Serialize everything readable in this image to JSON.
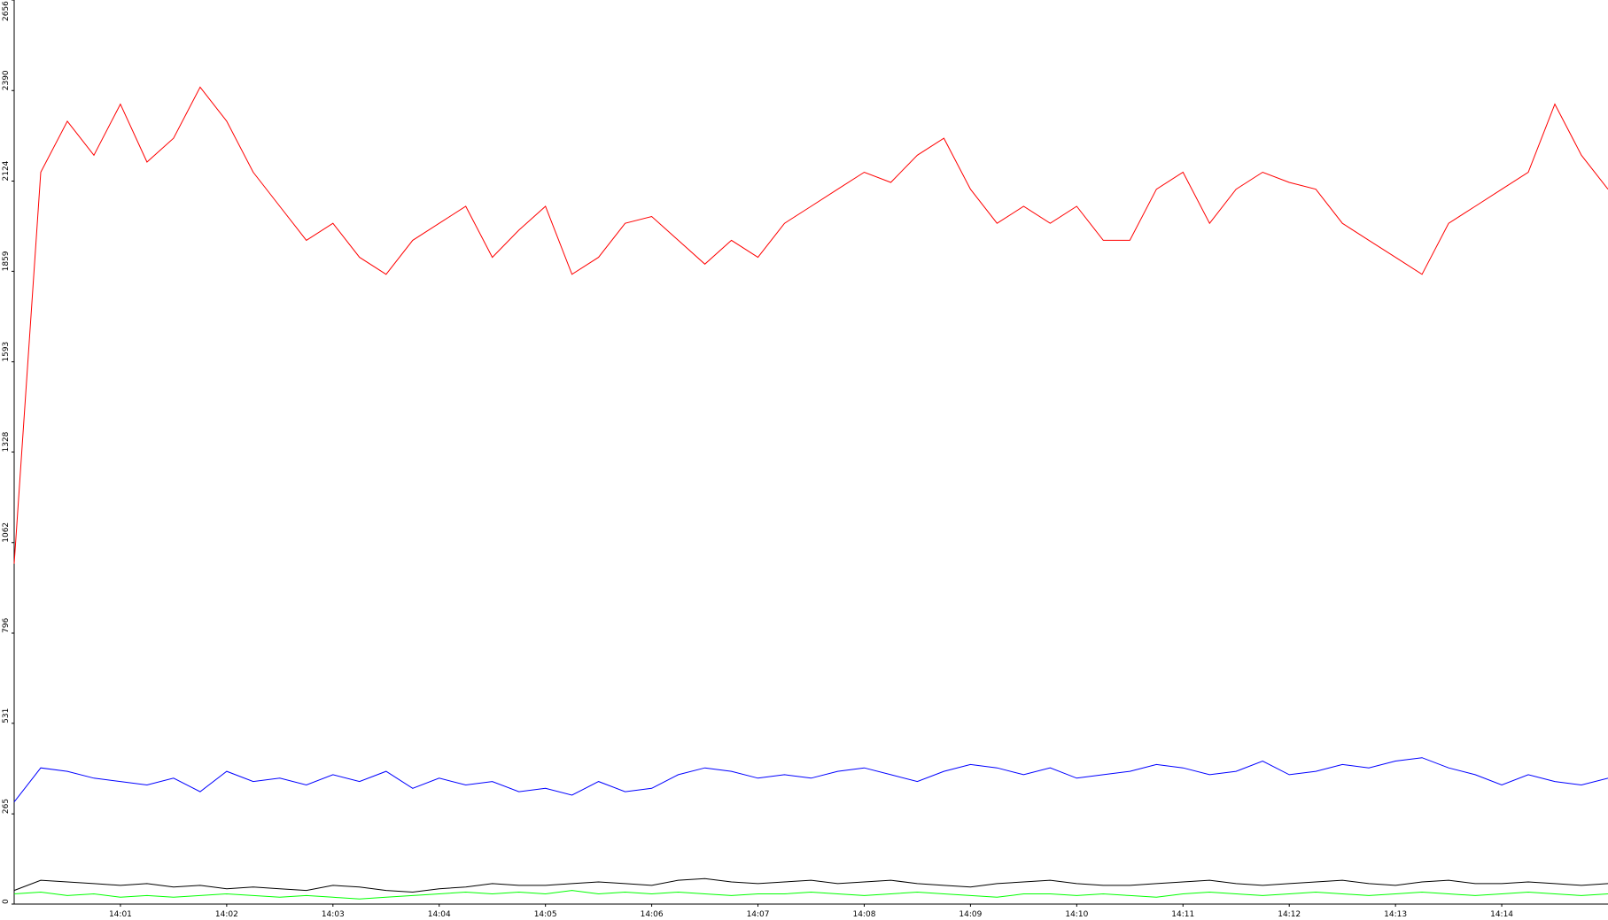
{
  "chart_data": {
    "type": "line",
    "categories": [
      null,
      null,
      null,
      null,
      "14:01",
      null,
      null,
      null,
      "14:02",
      null,
      null,
      null,
      "14:03",
      null,
      null,
      null,
      "14:04",
      null,
      null,
      null,
      "14:05",
      null,
      null,
      null,
      "14:06",
      null,
      null,
      null,
      "14:07",
      null,
      null,
      null,
      "14:08",
      null,
      null,
      null,
      "14:09",
      null,
      null,
      null,
      "14:10",
      null,
      null,
      null,
      "14:11",
      null,
      null,
      null,
      "14:12",
      null,
      null,
      null,
      "14:13",
      null,
      null,
      null,
      "14:14",
      null,
      null,
      null,
      null
    ],
    "series": [
      {
        "color": "#ff0000",
        "values": [
          1000,
          2150,
          2300,
          2200,
          2350,
          2180,
          2250,
          2400,
          2300,
          2150,
          2050,
          1950,
          2000,
          1900,
          1850,
          1950,
          2000,
          2050,
          1900,
          1980,
          2050,
          1850,
          1900,
          2000,
          2020,
          1950,
          1880,
          1950,
          1900,
          2000,
          2050,
          2100,
          2150,
          2120,
          2200,
          2250,
          2100,
          2000,
          2050,
          2000,
          2050,
          1950,
          1950,
          2100,
          2150,
          2000,
          2100,
          2150,
          2120,
          2100,
          2000,
          1950,
          1900,
          1850,
          2000,
          2050,
          2100,
          2150,
          2350,
          2200,
          2100
        ]
      },
      {
        "color": "#0000ff",
        "values": [
          300,
          400,
          390,
          370,
          360,
          350,
          370,
          330,
          390,
          360,
          370,
          350,
          380,
          360,
          390,
          340,
          370,
          350,
          360,
          330,
          340,
          320,
          360,
          330,
          340,
          380,
          400,
          390,
          370,
          380,
          370,
          390,
          400,
          380,
          360,
          390,
          410,
          400,
          380,
          400,
          370,
          380,
          390,
          410,
          400,
          380,
          390,
          420,
          380,
          390,
          410,
          400,
          420,
          430,
          400,
          380,
          350,
          380,
          360,
          350,
          370
        ]
      },
      {
        "color": "#000000",
        "values": [
          40,
          70,
          65,
          60,
          55,
          60,
          50,
          55,
          45,
          50,
          45,
          40,
          55,
          50,
          40,
          35,
          45,
          50,
          60,
          55,
          55,
          60,
          65,
          60,
          55,
          70,
          75,
          65,
          60,
          65,
          70,
          60,
          65,
          70,
          60,
          55,
          50,
          60,
          65,
          70,
          60,
          55,
          55,
          60,
          65,
          70,
          60,
          55,
          60,
          65,
          70,
          60,
          55,
          65,
          70,
          60,
          60,
          65,
          60,
          55,
          60
        ]
      },
      {
        "color": "#00ff00",
        "values": [
          30,
          35,
          25,
          30,
          20,
          25,
          20,
          25,
          30,
          25,
          20,
          25,
          20,
          15,
          20,
          25,
          30,
          35,
          30,
          35,
          30,
          40,
          30,
          35,
          30,
          35,
          30,
          25,
          30,
          30,
          35,
          30,
          25,
          30,
          35,
          30,
          25,
          20,
          30,
          30,
          25,
          30,
          25,
          20,
          30,
          35,
          30,
          25,
          30,
          35,
          30,
          25,
          30,
          35,
          30,
          25,
          30,
          35,
          30,
          25,
          30
        ]
      }
    ],
    "ylim": [
      0,
      2656
    ],
    "yticks": [
      0,
      265,
      531,
      796,
      1062,
      1328,
      1593,
      1859,
      2124,
      2390,
      2656
    ]
  }
}
